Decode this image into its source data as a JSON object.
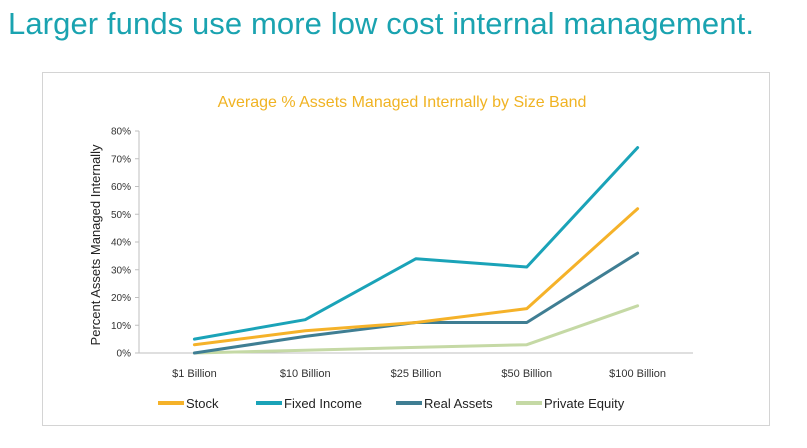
{
  "slide": {
    "title": "Larger funds use more low cost internal management."
  },
  "chart_data": {
    "type": "line",
    "title": "Average % Assets Managed Internally by Size Band",
    "xlabel": "",
    "ylabel": "Percent Assets Managed Internally",
    "categories": [
      "$1 Billion",
      "$10 Billion",
      "$25 Billion",
      "$50 Billion",
      "$100 Billion"
    ],
    "ylim": [
      0,
      80
    ],
    "yticks": [
      0,
      10,
      20,
      30,
      40,
      50,
      60,
      70,
      80
    ],
    "ytick_labels": [
      "0%",
      "10%",
      "20%",
      "30%",
      "40%",
      "50%",
      "60%",
      "70%",
      "80%"
    ],
    "grid": false,
    "legend_position": "bottom",
    "series": [
      {
        "name": "Stock",
        "color": "#f5b229",
        "values": [
          3,
          8,
          11,
          16,
          52
        ]
      },
      {
        "name": "Fixed Income",
        "color": "#1aa3b8",
        "values": [
          5,
          12,
          34,
          31,
          74
        ]
      },
      {
        "name": "Real Assets",
        "color": "#3f7e93",
        "values": [
          0,
          6,
          11,
          11,
          36
        ]
      },
      {
        "name": "Private Equity",
        "color": "#c5d9a5",
        "values": [
          0,
          1,
          2,
          3,
          17
        ]
      }
    ]
  }
}
